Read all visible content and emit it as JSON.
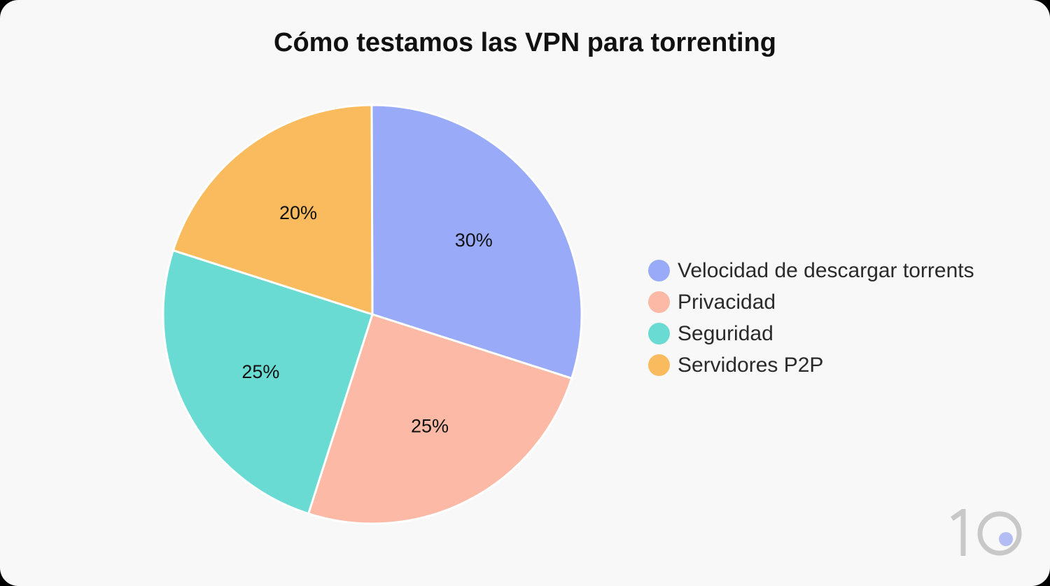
{
  "chart_data": {
    "type": "pie",
    "title": "Cómo testamos las VPN para torrenting",
    "slices": [
      {
        "label": "Velocidad de descargar torrents",
        "value": 30,
        "display": "30%",
        "color": "#99abf8"
      },
      {
        "label": "Privacidad",
        "value": 25,
        "display": "25%",
        "color": "#fbb9a6"
      },
      {
        "label": "Seguridad",
        "value": 25,
        "display": "25%",
        "color": "#6adbd3"
      },
      {
        "label": "Servidores P2P",
        "value": 20,
        "display": "20%",
        "color": "#fabb5e"
      }
    ],
    "legend_position": "right"
  },
  "logo": {
    "name": "10-logo",
    "colors": {
      "digits": "#c8c8c8",
      "dot": "#b3bcf3"
    }
  }
}
